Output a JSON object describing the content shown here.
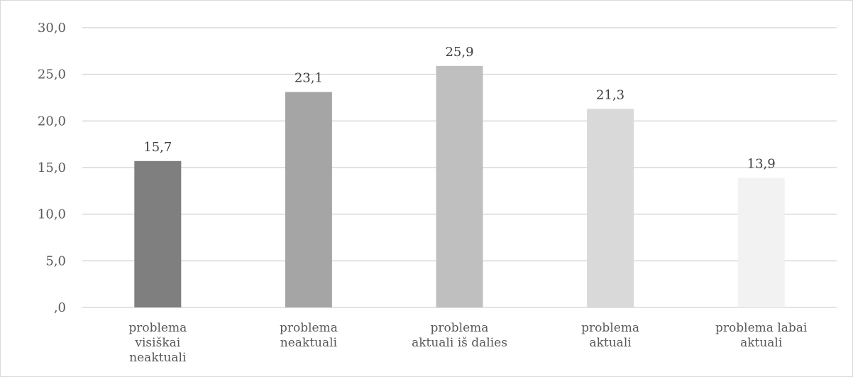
{
  "chart_data": {
    "type": "bar",
    "title": "",
    "xlabel": "",
    "ylabel": "",
    "ylim": [
      0,
      30
    ],
    "y_ticks": [
      ",0",
      "5,0",
      "10,0",
      "15,0",
      "20,0",
      "25,0",
      "30,0"
    ],
    "y_tick_values": [
      0,
      5,
      10,
      15,
      20,
      25,
      30
    ],
    "grid": true,
    "legend": "none",
    "categories": [
      [
        "problema",
        "visiškai",
        "neaktuali"
      ],
      [
        "problema",
        "neaktuali"
      ],
      [
        "problema",
        "aktuali iš dalies"
      ],
      [
        "problema",
        "aktuali"
      ],
      [
        "problema labai",
        "aktuali"
      ]
    ],
    "values": [
      15.7,
      23.1,
      25.9,
      21.3,
      13.9
    ],
    "value_labels": [
      "15,7",
      "23,1",
      "25,9",
      "21,3",
      "13,9"
    ],
    "colors": [
      "#7f7f7f",
      "#a5a5a5",
      "#bfbfbf",
      "#d9d9d9",
      "#f2f2f2"
    ]
  }
}
